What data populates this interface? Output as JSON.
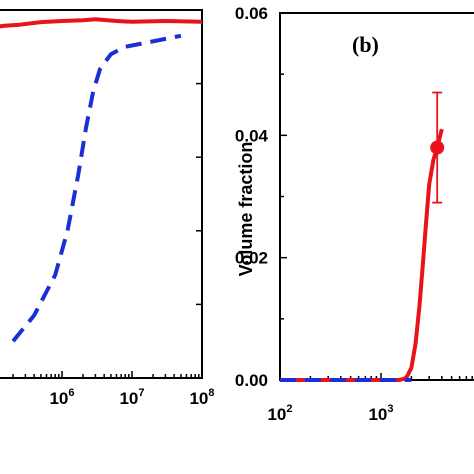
{
  "chart_data": [
    {
      "type": "line",
      "panel": "a",
      "x_scale": "log",
      "xlim": [
        100000,
        100000000
      ],
      "x_ticks": [
        {
          "base": "10",
          "exp": "6"
        },
        {
          "base": "10",
          "exp": "7"
        },
        {
          "base": "10",
          "exp": "8"
        }
      ],
      "series": [
        {
          "color": "#e8141b",
          "style": "solid",
          "x": [
            100000,
            150000,
            250000,
            500000,
            1000000,
            2000000,
            3000000,
            6000000,
            10000000,
            30000000,
            100000000
          ],
          "y_rel": [
            0.953,
            0.957,
            0.96,
            0.967,
            0.97,
            0.972,
            0.975,
            0.97,
            0.968,
            0.97,
            0.968
          ]
        },
        {
          "color": "#1a2fd6",
          "style": "dashed",
          "x": [
            200000,
            400000,
            800000,
            1200000,
            1700000,
            2200000,
            2800000,
            3500000,
            5000000,
            8000000,
            15000000,
            50000000
          ],
          "y_rel": [
            0.1,
            0.17,
            0.28,
            0.4,
            0.55,
            0.68,
            0.78,
            0.84,
            0.88,
            0.9,
            0.91,
            0.93
          ]
        }
      ]
    },
    {
      "type": "line",
      "panel": "b",
      "panel_label": "(b)",
      "ylabel": "Volume fraction",
      "x_scale": "log",
      "xlim": [
        100,
        10000
      ],
      "ylim": [
        0,
        0.06
      ],
      "y_ticks": [
        "0.00",
        "0.02",
        "0.04",
        "0.06"
      ],
      "x_ticks": [
        {
          "base": "10",
          "exp": "2"
        },
        {
          "base": "10",
          "exp": "3"
        }
      ],
      "series": [
        {
          "color": "#e8141b",
          "style": "solid",
          "x": [
            100,
            1000,
            1500,
            1700,
            1800,
            2000,
            2200,
            2400,
            2600,
            2800,
            3000,
            3300,
            3600,
            4000
          ],
          "y": [
            0.0,
            0.0,
            0.0,
            0.0002,
            0.0005,
            0.002,
            0.006,
            0.012,
            0.019,
            0.026,
            0.032,
            0.036,
            0.038,
            0.041
          ]
        },
        {
          "color": "#1a2fd6",
          "style": "dashed",
          "x": [
            100,
            2000
          ],
          "y": [
            0.0,
            0.0
          ]
        },
        {
          "color": "#e8141b",
          "style": "marker",
          "x": [
            3600
          ],
          "y": [
            0.038
          ],
          "err_low": [
            0.029
          ],
          "err_high": [
            0.047
          ]
        }
      ]
    }
  ]
}
